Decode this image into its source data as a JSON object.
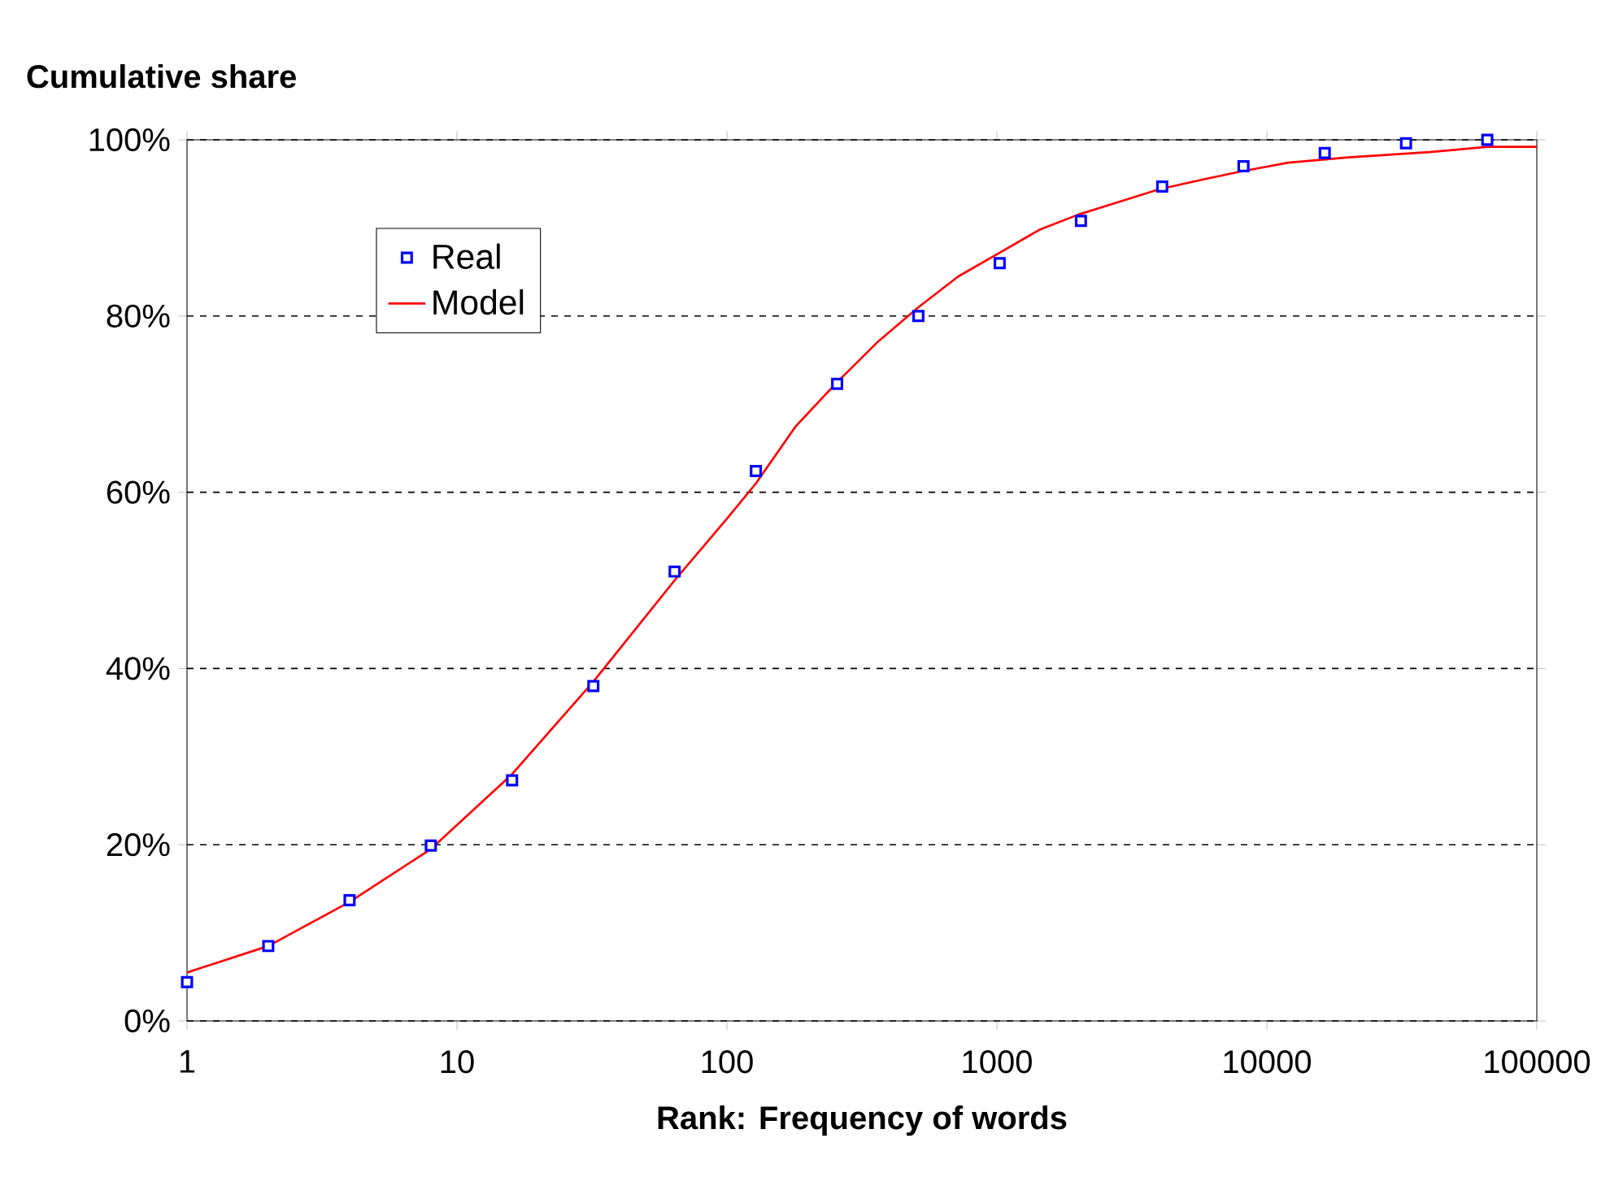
{
  "chart_data": {
    "type": "scatter",
    "ylabel": "Cumulative share",
    "xlabel": "Rank: Frequency of words",
    "log": "x",
    "grid": "y",
    "legend": "top left",
    "xlim": [
      1,
      100000
    ],
    "xticks": [
      1,
      10,
      100,
      1000,
      10000,
      100000
    ],
    "ylim": [
      0,
      100
    ],
    "yticks": [
      {
        "value": 0,
        "label": "0%"
      },
      {
        "value": 20,
        "label": "20%"
      },
      {
        "value": 40,
        "label": "40%"
      },
      {
        "value": 60,
        "label": "60%"
      },
      {
        "value": 80,
        "label": "80%"
      },
      {
        "value": 100,
        "label": "100%"
      }
    ],
    "series": [
      {
        "name": "Real",
        "marker": "square",
        "color": "#0000ff",
        "x": [
          1,
          2,
          4,
          8,
          16,
          32,
          64,
          128,
          256,
          512,
          1024,
          2048,
          4096,
          8192,
          16384,
          32768,
          65536
        ],
        "values": [
          4.4,
          8.5,
          13.7,
          19.9,
          27.3,
          38,
          51,
          62.4,
          72.3,
          80,
          86,
          90.8,
          94.7,
          97,
          98.5,
          99.6,
          100
        ]
      },
      {
        "name": "Model",
        "type": "line",
        "marker": "none",
        "line_style": "solid",
        "color": "#ff0000",
        "x": [
          1,
          2,
          4,
          8,
          16,
          32,
          64,
          100,
          128,
          180,
          256,
          360,
          512,
          720,
          1000,
          1440,
          2000,
          3000,
          4000,
          6000,
          8000,
          12000,
          20000,
          40000,
          65536,
          100000
        ],
        "values": [
          5.5,
          8.5,
          13.5,
          19.5,
          28,
          38.5,
          50,
          57,
          61,
          67.5,
          72.5,
          77,
          81,
          84.5,
          87,
          89.8,
          91.5,
          93.2,
          94.4,
          95.6,
          96.4,
          97.4,
          98,
          98.6,
          99.2,
          99.2
        ]
      }
    ]
  }
}
